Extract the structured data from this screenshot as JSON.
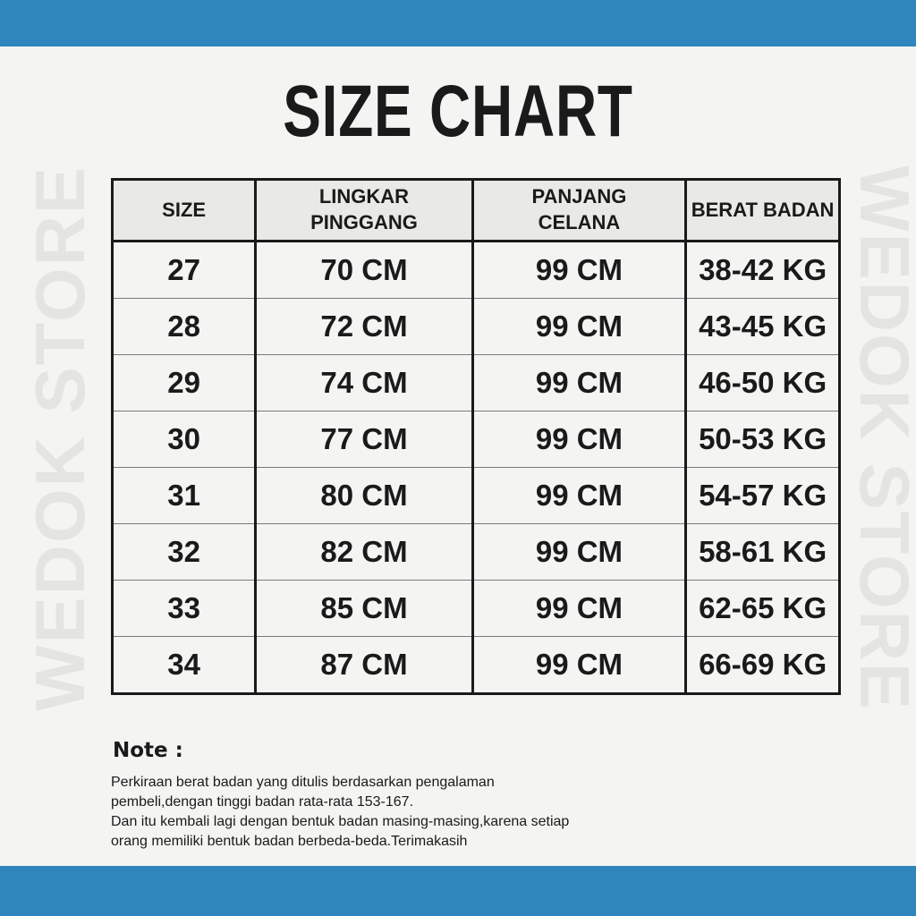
{
  "colors": {
    "accent": "#2f86bd",
    "background": "#f4f4f2",
    "header": "#e9e9e5"
  },
  "watermark": "WEDOK STORE",
  "title": "SIZE CHART",
  "table": {
    "headers": [
      "SIZE",
      "LINGKAR PINGGANG",
      "PANJANG CELANA",
      "BERAT BADAN"
    ],
    "rows": [
      [
        "27",
        "70 CM",
        "99 CM",
        "38-42 KG"
      ],
      [
        "28",
        "72 CM",
        "99 CM",
        "43-45 KG"
      ],
      [
        "29",
        "74 CM",
        "99 CM",
        "46-50 KG"
      ],
      [
        "30",
        "77 CM",
        "99 CM",
        "50-53 KG"
      ],
      [
        "31",
        "80 CM",
        "99 CM",
        "54-57 KG"
      ],
      [
        "32",
        "82 CM",
        "99 CM",
        "58-61 KG"
      ],
      [
        "33",
        "85 CM",
        "99 CM",
        "62-65 KG"
      ],
      [
        "34",
        "87 CM",
        "99 CM",
        "66-69 KG"
      ]
    ]
  },
  "note": {
    "heading": "Note :",
    "lines": [
      "Perkiraan berat badan yang ditulis berdasarkan pengalaman",
      "pembeli,dengan tinggi badan rata-rata 153-167.",
      "Dan itu kembali lagi dengan bentuk badan masing-masing,karena setiap",
      "orang memiliki bentuk badan berbeda-beda.Terimakasih"
    ]
  }
}
